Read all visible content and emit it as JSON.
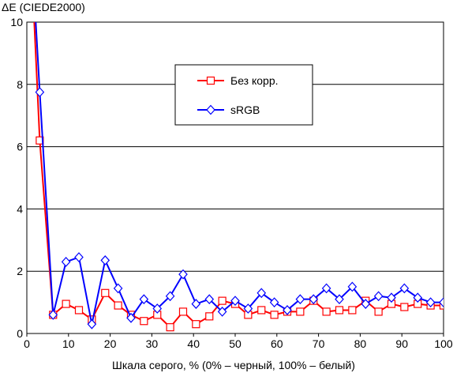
{
  "chart_data": {
    "type": "line",
    "ylabel": "ΔE (CIEDE2000)",
    "xlabel": "Шкала серого, % (0% – черный, 100% – белый)",
    "xlim": [
      0,
      100
    ],
    "ylim": [
      0,
      10
    ],
    "xticks": [
      0,
      10,
      20,
      30,
      40,
      50,
      60,
      70,
      80,
      90,
      100
    ],
    "yticks": [
      0,
      2,
      4,
      6,
      8,
      10
    ],
    "grid": "horizontal",
    "legend_position": "top-right",
    "series": [
      {
        "name": "Без корр.",
        "color": "#ff0000",
        "marker": "square",
        "x": [
          1.5,
          3.1,
          6.3,
          9.4,
          12.5,
          15.6,
          18.8,
          21.9,
          25.0,
          28.1,
          31.3,
          34.4,
          37.5,
          40.6,
          43.8,
          46.9,
          50.0,
          53.1,
          56.3,
          59.4,
          62.5,
          65.6,
          68.8,
          71.9,
          75.0,
          78.1,
          81.3,
          84.4,
          87.5,
          90.6,
          93.8,
          96.9,
          100.0
        ],
        "y": [
          10.8,
          6.2,
          0.6,
          0.95,
          0.75,
          0.45,
          1.3,
          0.9,
          0.6,
          0.4,
          0.6,
          0.2,
          0.7,
          0.3,
          0.55,
          1.05,
          0.95,
          0.6,
          0.75,
          0.6,
          0.7,
          0.7,
          1.05,
          0.7,
          0.75,
          0.75,
          1.05,
          0.7,
          0.95,
          0.85,
          0.95,
          0.9,
          0.9
        ]
      },
      {
        "name": "sRGB",
        "color": "#0000ff",
        "marker": "diamond",
        "x": [
          1.5,
          3.1,
          6.3,
          9.4,
          12.5,
          15.6,
          18.8,
          21.9,
          25.0,
          28.1,
          31.3,
          34.4,
          37.5,
          40.6,
          43.8,
          46.9,
          50.0,
          53.1,
          56.3,
          59.4,
          62.5,
          65.6,
          68.8,
          71.9,
          75.0,
          78.1,
          81.3,
          84.4,
          87.5,
          90.6,
          93.8,
          96.9,
          100.0
        ],
        "y": [
          11.5,
          7.75,
          0.6,
          2.3,
          2.45,
          0.3,
          2.35,
          1.45,
          0.5,
          1.1,
          0.8,
          1.2,
          1.9,
          0.95,
          1.1,
          0.7,
          1.05,
          0.8,
          1.3,
          1.0,
          0.75,
          1.1,
          1.1,
          1.45,
          1.1,
          1.5,
          0.95,
          1.2,
          1.15,
          1.45,
          1.15,
          1.0,
          1.0
        ]
      }
    ]
  }
}
